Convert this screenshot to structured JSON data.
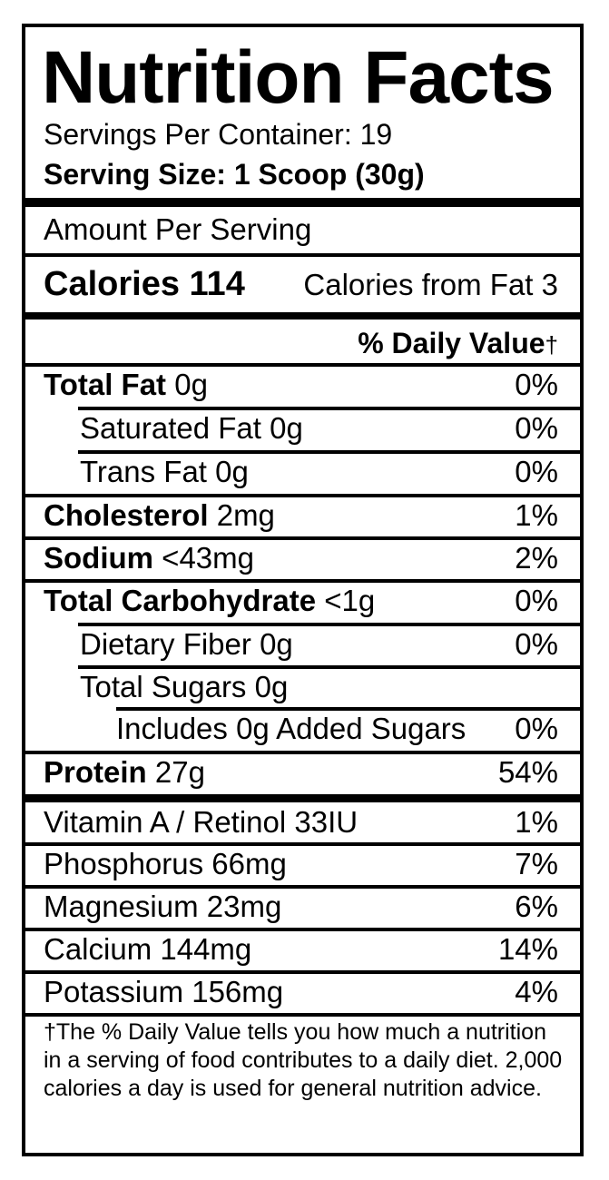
{
  "header": {
    "title": "Nutrition Facts",
    "servings_per_container": "Servings Per Container: 19",
    "serving_size": "Serving Size: 1 Scoop (30g)"
  },
  "amount_per_serving": "Amount Per Serving",
  "calories": {
    "label": "Calories 114",
    "from_fat": "Calories from Fat 3"
  },
  "daily_value_header": {
    "label": "% Daily Value",
    "dagger": "†"
  },
  "nutrients": [
    {
      "name": "Total Fat",
      "amount": "0g",
      "dv": "0%"
    },
    {
      "name": "Saturated Fat",
      "amount": "0g",
      "dv": "0%"
    },
    {
      "name": "Trans Fat",
      "amount": "0g",
      "dv": "0%"
    },
    {
      "name": "Cholesterol",
      "amount": "2mg",
      "dv": "1%"
    },
    {
      "name": "Sodium",
      "amount": "<43mg",
      "dv": "2%"
    },
    {
      "name": "Total Carbohydrate",
      "amount": "<1g",
      "dv": "0%"
    },
    {
      "name": "Dietary Fiber",
      "amount": "0g",
      "dv": "0%"
    },
    {
      "name": "Total Sugars",
      "amount": "0g",
      "dv": ""
    },
    {
      "name": "Includes 0g Added Sugars",
      "amount": "",
      "dv": "0%"
    },
    {
      "name": "Protein",
      "amount": "27g",
      "dv": "54%"
    }
  ],
  "vitamins": [
    {
      "name": "Vitamin A / Retinol 33IU",
      "dv": "1%"
    },
    {
      "name": "Phosphorus 66mg",
      "dv": "7%"
    },
    {
      "name": "Magnesium 23mg",
      "dv": "6%"
    },
    {
      "name": "Calcium 144mg",
      "dv": "14%"
    },
    {
      "name": "Potassium 156mg",
      "dv": "4%"
    }
  ],
  "footnote": "†The % Daily Value tells you how much a nutrition in a serving of food contributes to a daily diet. 2,000 calories a day is used for general nutrition advice."
}
